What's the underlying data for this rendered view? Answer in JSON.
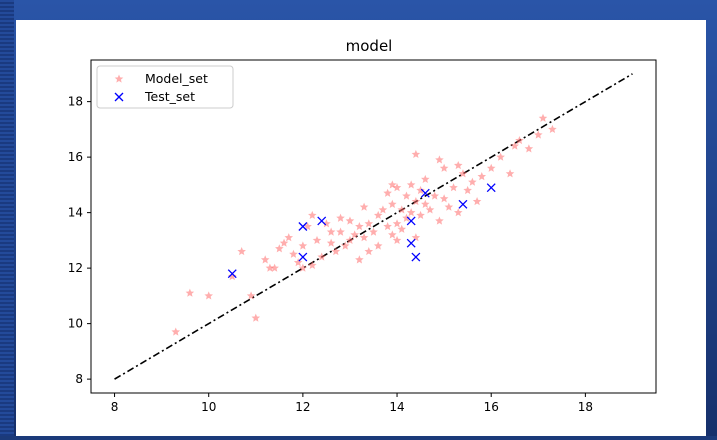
{
  "chart_data": {
    "type": "scatter",
    "title": "model",
    "xlabel": "",
    "ylabel": "",
    "xlim": [
      7.5,
      19.5
    ],
    "ylim": [
      7.5,
      19.5
    ],
    "xticks": [
      8,
      10,
      12,
      14,
      16,
      18
    ],
    "yticks": [
      8,
      10,
      12,
      14,
      16,
      18
    ],
    "grid": false,
    "legend": "top-left",
    "reference_line": {
      "style": "dash-dot",
      "color": "#000000",
      "x": [
        8,
        19
      ],
      "y": [
        8,
        19
      ]
    },
    "series": [
      {
        "name": "Model_set",
        "marker": "star",
        "color": "#ff6b6b",
        "x": [
          9.3,
          9.6,
          10.0,
          10.5,
          10.7,
          10.9,
          11.0,
          11.2,
          11.3,
          11.5,
          11.6,
          11.7,
          11.8,
          11.9,
          12.0,
          12.0,
          12.1,
          12.2,
          12.3,
          12.4,
          12.5,
          12.6,
          12.7,
          12.8,
          12.9,
          13.0,
          13.0,
          13.1,
          13.2,
          13.3,
          13.3,
          13.4,
          13.5,
          13.6,
          13.6,
          13.7,
          13.8,
          13.8,
          13.9,
          13.9,
          14.0,
          14.0,
          14.0,
          14.1,
          14.1,
          14.2,
          14.2,
          14.3,
          14.3,
          14.4,
          14.4,
          14.5,
          14.5,
          14.6,
          14.6,
          14.7,
          14.8,
          14.9,
          15.0,
          15.0,
          15.1,
          15.2,
          15.3,
          15.4,
          15.5,
          15.6,
          15.8,
          16.0,
          16.2,
          16.4,
          16.6,
          16.8,
          17.0,
          17.1,
          17.3,
          12.6,
          13.4,
          14.9,
          15.7,
          12.2,
          11.4,
          13.9,
          14.4,
          15.3,
          16.5,
          12.8,
          13.2
        ],
        "y": [
          9.7,
          11.1,
          11.0,
          11.7,
          12.6,
          11.0,
          10.2,
          12.3,
          12.0,
          12.7,
          12.9,
          13.1,
          12.5,
          12.2,
          12.0,
          12.8,
          13.5,
          12.1,
          13.0,
          12.4,
          13.6,
          12.9,
          12.6,
          13.3,
          12.8,
          13.0,
          13.7,
          13.2,
          13.5,
          13.1,
          14.2,
          13.6,
          13.3,
          13.9,
          12.8,
          14.1,
          13.5,
          14.7,
          13.2,
          14.3,
          13.6,
          14.9,
          13.0,
          14.1,
          13.4,
          14.6,
          13.8,
          15.0,
          14.0,
          14.4,
          13.1,
          14.8,
          13.9,
          14.3,
          15.2,
          14.1,
          14.6,
          13.7,
          14.5,
          15.6,
          14.2,
          14.9,
          14.0,
          15.4,
          14.8,
          15.1,
          15.3,
          15.6,
          16.0,
          15.4,
          16.6,
          16.3,
          16.8,
          17.4,
          17.0,
          13.3,
          12.6,
          15.9,
          14.4,
          13.9,
          12.0,
          15.0,
          16.1,
          15.7,
          16.4,
          13.8,
          12.3
        ]
      },
      {
        "name": "Test_set",
        "marker": "x",
        "color": "#0000ff",
        "x": [
          10.5,
          12.0,
          12.0,
          12.4,
          14.3,
          14.3,
          14.4,
          14.6,
          15.4,
          16.0
        ],
        "y": [
          11.8,
          13.5,
          12.4,
          13.7,
          12.9,
          13.7,
          12.4,
          14.7,
          14.3,
          14.9
        ]
      }
    ]
  }
}
